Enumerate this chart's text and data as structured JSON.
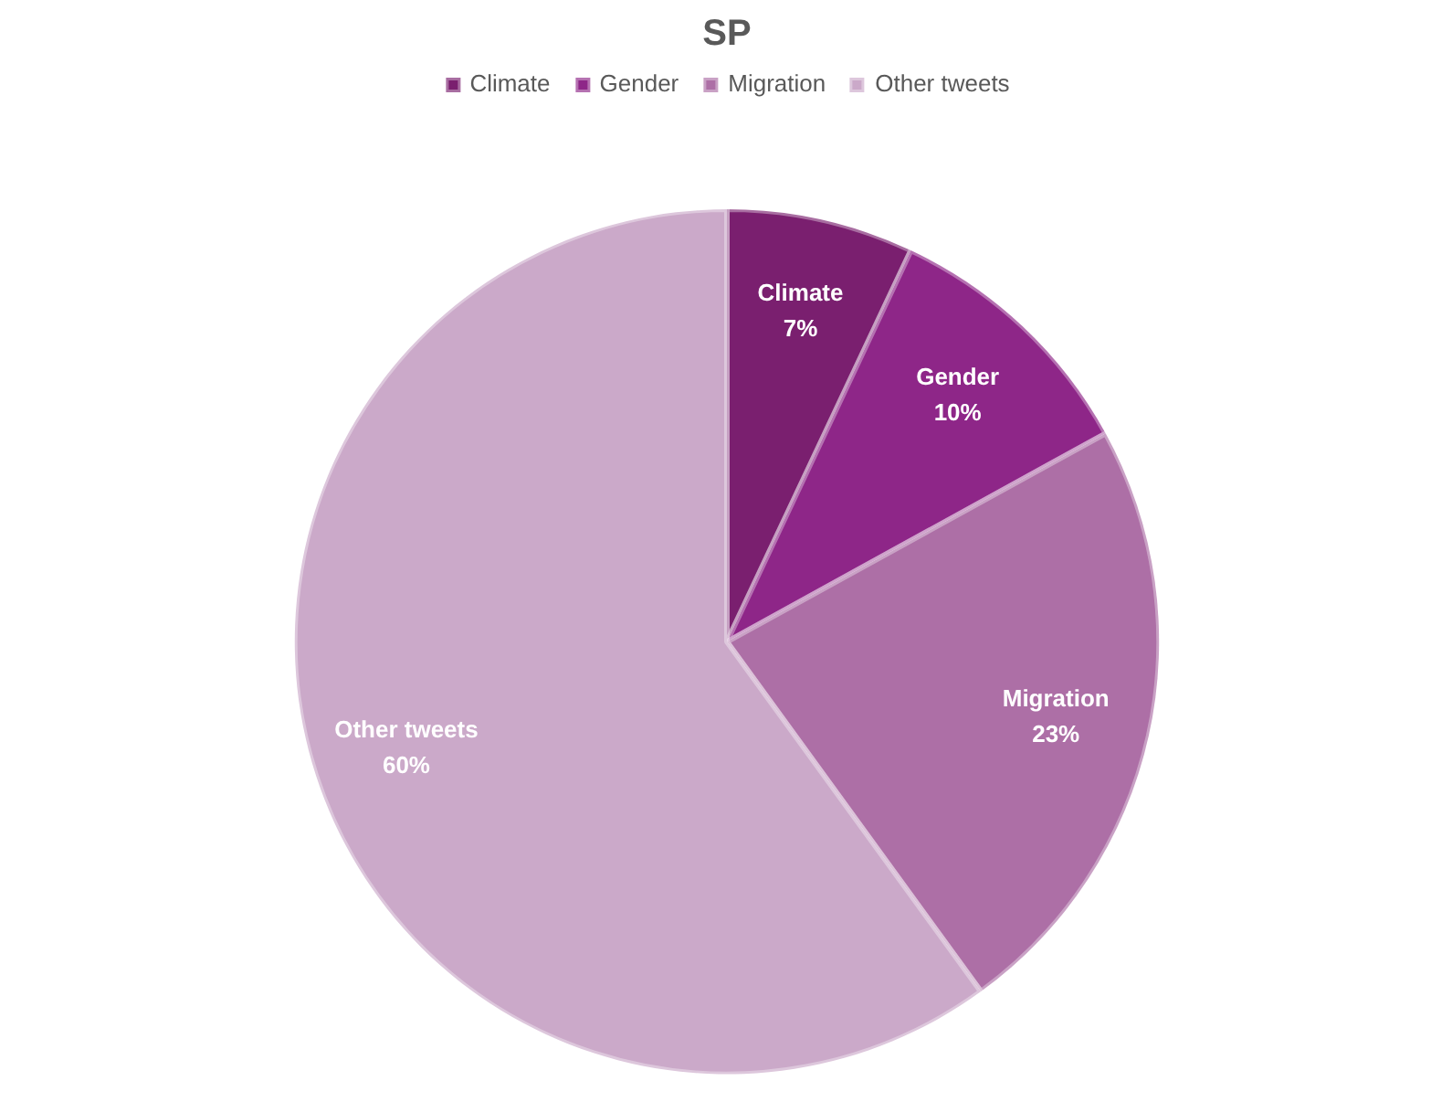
{
  "chart_data": {
    "type": "pie",
    "title": "SP",
    "categories": [
      "Climate",
      "Gender",
      "Migration",
      "Other tweets"
    ],
    "values": [
      7,
      10,
      23,
      60
    ],
    "colors": [
      "#7a1f6f",
      "#8e2688",
      "#ad6fa6",
      "#cba9c9"
    ],
    "value_labels": [
      "7%",
      "10%",
      "23%",
      "60%"
    ],
    "legend": "top"
  }
}
